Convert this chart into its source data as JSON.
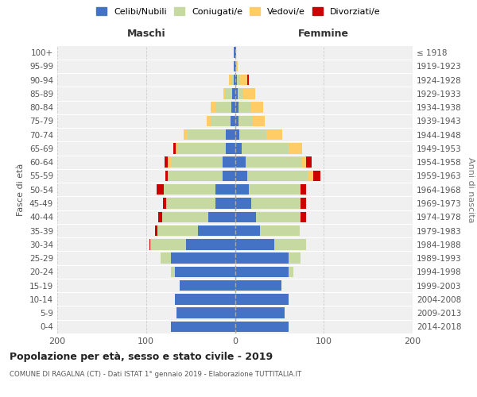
{
  "age_groups": [
    "0-4",
    "5-9",
    "10-14",
    "15-19",
    "20-24",
    "25-29",
    "30-34",
    "35-39",
    "40-44",
    "45-49",
    "50-54",
    "55-59",
    "60-64",
    "65-69",
    "70-74",
    "75-79",
    "80-84",
    "85-89",
    "90-94",
    "95-99",
    "100+"
  ],
  "birth_years": [
    "2014-2018",
    "2009-2013",
    "2004-2008",
    "1999-2003",
    "1994-1998",
    "1989-1993",
    "1984-1988",
    "1979-1983",
    "1974-1978",
    "1969-1973",
    "1964-1968",
    "1959-1963",
    "1954-1958",
    "1949-1953",
    "1944-1948",
    "1939-1943",
    "1934-1938",
    "1929-1933",
    "1924-1928",
    "1919-1923",
    "≤ 1918"
  ],
  "maschi": {
    "celibi": [
      72,
      66,
      68,
      62,
      68,
      72,
      55,
      42,
      30,
      22,
      22,
      14,
      14,
      10,
      10,
      5,
      4,
      3,
      1,
      1,
      1
    ],
    "coniugati": [
      0,
      0,
      0,
      0,
      4,
      12,
      40,
      45,
      52,
      55,
      58,
      62,
      58,
      55,
      43,
      22,
      18,
      8,
      3,
      0,
      0
    ],
    "vedovi": [
      0,
      0,
      0,
      0,
      0,
      0,
      0,
      0,
      0,
      0,
      0,
      0,
      4,
      2,
      5,
      5,
      5,
      2,
      3,
      0,
      0
    ],
    "divorziati": [
      0,
      0,
      0,
      0,
      0,
      0,
      1,
      3,
      4,
      4,
      8,
      2,
      3,
      2,
      0,
      0,
      0,
      0,
      0,
      0,
      0
    ]
  },
  "femmine": {
    "nubili": [
      60,
      56,
      60,
      52,
      60,
      60,
      44,
      28,
      24,
      18,
      16,
      14,
      12,
      8,
      5,
      4,
      4,
      3,
      2,
      1,
      1
    ],
    "coniugate": [
      0,
      0,
      0,
      0,
      6,
      14,
      36,
      45,
      50,
      56,
      58,
      68,
      64,
      52,
      30,
      16,
      14,
      6,
      4,
      0,
      0
    ],
    "vedove": [
      0,
      0,
      0,
      0,
      0,
      0,
      0,
      0,
      0,
      0,
      0,
      6,
      4,
      16,
      18,
      14,
      14,
      14,
      8,
      2,
      0
    ],
    "divorziate": [
      0,
      0,
      0,
      0,
      0,
      0,
      0,
      0,
      6,
      6,
      6,
      8,
      6,
      0,
      0,
      0,
      0,
      0,
      2,
      0,
      0
    ]
  },
  "colors": {
    "celibi_nubili": "#4472C4",
    "coniugati_e": "#C5D9A0",
    "vedovi_e": "#FFCC66",
    "divorziati_e": "#CC0000"
  },
  "xlim": 200,
  "title1": "Popolazione per età, sesso e stato civile - 2019",
  "title2": "COMUNE DI RAGALNA (CT) - Dati ISTAT 1° gennaio 2019 - Elaborazione TUTTITALIA.IT",
  "xlabel_left": "Maschi",
  "xlabel_right": "Femmine",
  "ylabel_left": "Fasce di età",
  "ylabel_right": "Anni di nascita",
  "legend_labels": [
    "Celibi/Nubili",
    "Coniugati/e",
    "Vedovi/e",
    "Divorziati/e"
  ],
  "bg_color": "#FFFFFF",
  "plot_bg_color": "#F0F0F0",
  "grid_color": "#CCCCCC"
}
